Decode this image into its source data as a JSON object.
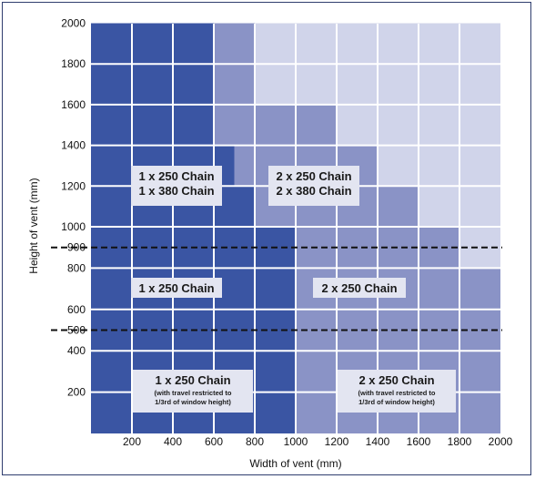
{
  "chart_data": {
    "type": "heatmap",
    "xlabel": "Width of vent (mm)",
    "ylabel": "Height of vent (mm)",
    "xlim": [
      0,
      2000
    ],
    "ylim": [
      0,
      2000
    ],
    "x_ticks": [
      "200",
      "400",
      "600",
      "800",
      "1000",
      "1200",
      "1400",
      "1600",
      "1800",
      "2000"
    ],
    "y_ticks": [
      "2000",
      "1800",
      "1600",
      "1400",
      "1200",
      "1000",
      "900",
      "800",
      "600",
      "500",
      "400",
      "200"
    ],
    "colors": {
      "dark": "#3a55a3",
      "medium": "#8a93c6",
      "light": "#d0d4ea",
      "grid": "#ffffff",
      "label_box": "#e3e5f1"
    },
    "dashed_lines_y": [
      900,
      500
    ],
    "regions": [
      {
        "shade": "dark",
        "x": [
          0,
          600
        ],
        "y": [
          1000,
          2000
        ]
      },
      {
        "shade": "medium",
        "x": [
          600,
          800
        ],
        "y": [
          1400,
          2000
        ]
      },
      {
        "shade": "light",
        "x": [
          800,
          2000
        ],
        "y": [
          1600,
          2000
        ]
      },
      {
        "shade": "medium",
        "x": [
          800,
          1000
        ],
        "y": [
          1400,
          1600
        ]
      },
      {
        "shade": "medium",
        "x": [
          1000,
          1200
        ],
        "y": [
          1400,
          1600
        ]
      },
      {
        "shade": "light",
        "x": [
          1200,
          2000
        ],
        "y": [
          1400,
          1600
        ]
      },
      {
        "shade": "dark",
        "x": [
          600,
          700
        ],
        "y": [
          1200,
          1400
        ]
      },
      {
        "shade": "medium",
        "x": [
          700,
          1400
        ],
        "y": [
          1000,
          1400
        ]
      },
      {
        "shade": "light",
        "x": [
          1400,
          2000
        ],
        "y": [
          1000,
          1400
        ]
      },
      {
        "shade": "dark",
        "x": [
          600,
          800
        ],
        "y": [
          1000,
          1200
        ]
      },
      {
        "shade": "medium",
        "x": [
          1400,
          1600
        ],
        "y": [
          1000,
          1200
        ]
      },
      {
        "shade": "dark",
        "x": [
          0,
          1000
        ],
        "y": [
          0,
          1000
        ]
      },
      {
        "shade": "medium",
        "x": [
          1000,
          1800
        ],
        "y": [
          0,
          1000
        ]
      },
      {
        "shade": "light",
        "x": [
          1800,
          2000
        ],
        "y": [
          800,
          1000
        ]
      },
      {
        "shade": "medium",
        "x": [
          1800,
          2000
        ],
        "y": [
          0,
          800
        ]
      }
    ],
    "zones": [
      {
        "lines": [
          "1 x 250 Chain",
          "1 x 380 Chain"
        ],
        "note": []
      },
      {
        "lines": [
          "2 x 250 Chain",
          "2 x 380 Chain"
        ],
        "note": []
      },
      {
        "lines": [
          "1 x 250 Chain"
        ],
        "note": []
      },
      {
        "lines": [
          "2 x 250 Chain"
        ],
        "note": []
      },
      {
        "lines": [
          "1 x 250 Chain"
        ],
        "note": [
          "(with travel restricted to",
          "1/3rd of window height)"
        ]
      },
      {
        "lines": [
          "2 x 250 Chain"
        ],
        "note": [
          "(with travel restricted to",
          "1/3rd of window height)"
        ]
      }
    ]
  }
}
